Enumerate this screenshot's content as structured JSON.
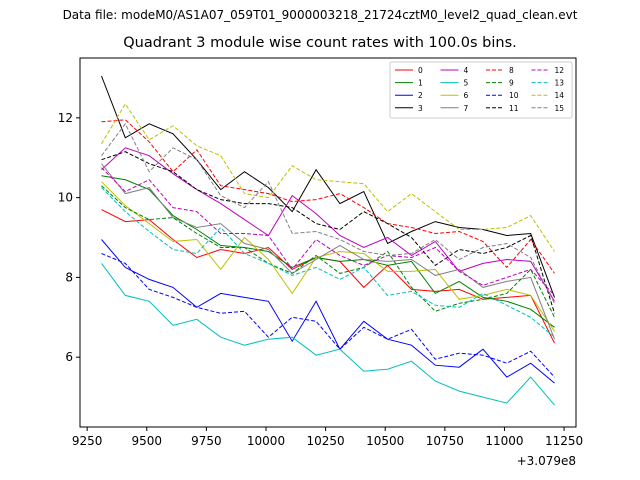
{
  "suptitle": "Data file: modeM0/AS1A07_059T01_9000003218_21724cztM0_level2_quad_clean.evt",
  "chart_data": {
    "type": "line",
    "title": "Quadrant 3 module wise count rates with 100.0s bins.",
    "xlabel": "",
    "ylabel": "",
    "x_offset_label": "+3.079e8",
    "xlim": [
      9220,
      11300
    ],
    "ylim": [
      4.25,
      13.5
    ],
    "xticks": [
      9250,
      9500,
      9750,
      10000,
      10250,
      10500,
      10750,
      11000,
      11250
    ],
    "xtick_labels": [
      "9250",
      "9500",
      "9750",
      "10000",
      "10250",
      "10500",
      "10750",
      "11000",
      "11250"
    ],
    "yticks": [
      6,
      8,
      10,
      12
    ],
    "ytick_labels": [
      "6",
      "8",
      "10",
      "12"
    ],
    "legend_loc": "upper right",
    "x": [
      9310,
      9410,
      9510,
      9610,
      9710,
      9810,
      9910,
      10010,
      10110,
      10210,
      10310,
      10410,
      10510,
      10610,
      10710,
      10810,
      10910,
      11010,
      11110,
      11210
    ],
    "series": [
      {
        "name": "0",
        "color": "#ff0000",
        "dash": "solid",
        "values": [
          9.7,
          9.4,
          9.45,
          8.95,
          8.5,
          8.7,
          8.6,
          8.75,
          8.2,
          8.5,
          8.4,
          7.75,
          8.3,
          7.7,
          7.65,
          7.7,
          7.45,
          7.5,
          7.55,
          6.35
        ]
      },
      {
        "name": "1",
        "color": "#008000",
        "dash": "solid",
        "values": [
          10.55,
          10.45,
          10.2,
          9.55,
          9.2,
          8.8,
          8.75,
          8.65,
          8.25,
          8.5,
          8.4,
          8.45,
          8.3,
          8.4,
          7.6,
          7.9,
          7.5,
          7.4,
          7.2,
          6.75
        ]
      },
      {
        "name": "2",
        "color": "#0000ff",
        "dash": "solid",
        "values": [
          8.95,
          8.25,
          7.95,
          7.75,
          7.25,
          7.6,
          7.5,
          7.4,
          6.4,
          7.4,
          6.2,
          6.9,
          6.45,
          6.3,
          5.8,
          5.75,
          6.2,
          5.5,
          5.85,
          5.35
        ]
      },
      {
        "name": "3",
        "color": "#000000",
        "dash": "solid",
        "values": [
          13.05,
          11.5,
          11.85,
          11.6,
          10.95,
          10.2,
          10.65,
          10.25,
          9.65,
          10.7,
          9.85,
          10.15,
          8.85,
          9.15,
          9.4,
          9.25,
          9.2,
          9.05,
          9.1,
          7.5
        ]
      },
      {
        "name": "4",
        "color": "#bf00bf",
        "dash": "solid",
        "values": [
          10.7,
          11.25,
          11.05,
          10.6,
          10.2,
          9.85,
          9.45,
          9.05,
          10.05,
          9.6,
          9.05,
          8.75,
          9.0,
          8.55,
          8.9,
          8.15,
          8.35,
          8.45,
          8.4,
          7.4
        ]
      },
      {
        "name": "5",
        "color": "#00bfbf",
        "dash": "solid",
        "values": [
          8.35,
          7.55,
          7.4,
          6.8,
          6.95,
          6.5,
          6.3,
          6.45,
          6.5,
          6.05,
          6.2,
          5.65,
          5.7,
          5.9,
          5.4,
          5.15,
          5.0,
          4.85,
          5.5,
          4.8
        ]
      },
      {
        "name": "6",
        "color": "#bfbf00",
        "dash": "solid",
        "values": [
          10.4,
          9.8,
          9.35,
          8.9,
          8.95,
          8.2,
          9.0,
          8.45,
          7.6,
          8.5,
          8.65,
          8.6,
          8.15,
          8.15,
          8.2,
          7.45,
          7.55,
          7.7,
          7.55,
          6.65
        ]
      },
      {
        "name": "7",
        "color": "#808080",
        "dash": "solid",
        "values": [
          10.85,
          10.1,
          10.25,
          9.5,
          9.25,
          9.35,
          8.85,
          8.7,
          8.1,
          8.45,
          8.8,
          8.45,
          8.4,
          8.45,
          8.05,
          8.2,
          7.75,
          7.9,
          8.0,
          6.45
        ]
      },
      {
        "name": "8",
        "color": "#ff0000",
        "dash": "dashed",
        "values": [
          11.9,
          11.95,
          11.4,
          10.65,
          11.2,
          10.3,
          10.2,
          10.1,
          9.9,
          9.95,
          10.1,
          9.75,
          9.35,
          9.25,
          9.1,
          9.15,
          8.9,
          8.25,
          8.95,
          8.1
        ]
      },
      {
        "name": "9",
        "color": "#008000",
        "dash": "dashed",
        "values": [
          10.3,
          9.75,
          9.45,
          9.5,
          9.1,
          8.75,
          8.75,
          8.35,
          8.1,
          8.55,
          8.1,
          8.25,
          8.65,
          7.75,
          7.15,
          7.35,
          7.45,
          7.6,
          8.2,
          7.0
        ]
      },
      {
        "name": "10",
        "color": "#0000ff",
        "dash": "dashed",
        "values": [
          8.6,
          8.35,
          7.7,
          7.5,
          7.25,
          7.1,
          7.15,
          6.5,
          7.0,
          6.9,
          6.2,
          6.75,
          6.45,
          6.7,
          5.95,
          6.1,
          6.05,
          5.85,
          6.15,
          5.5
        ]
      },
      {
        "name": "11",
        "color": "#000000",
        "dash": "dashed",
        "values": [
          10.95,
          11.15,
          10.85,
          10.65,
          10.2,
          9.95,
          9.85,
          9.85,
          9.75,
          9.35,
          9.2,
          9.65,
          9.35,
          9.0,
          8.3,
          8.7,
          8.6,
          8.75,
          9.05,
          7.1
        ]
      },
      {
        "name": "12",
        "color": "#bf00bf",
        "dash": "dashed",
        "values": [
          10.75,
          10.15,
          10.45,
          9.75,
          9.65,
          9.1,
          9.1,
          9.05,
          8.2,
          8.95,
          8.55,
          8.3,
          8.55,
          8.5,
          8.75,
          8.15,
          7.8,
          8.0,
          8.2,
          7.55
        ]
      },
      {
        "name": "13",
        "color": "#00bfbf",
        "dash": "dashed",
        "values": [
          10.25,
          9.65,
          9.15,
          8.7,
          8.6,
          9.25,
          8.6,
          8.35,
          8.05,
          8.25,
          7.95,
          8.25,
          7.55,
          7.65,
          7.3,
          7.25,
          7.6,
          7.3,
          7.0,
          6.5
        ]
      },
      {
        "name": "14",
        "color": "#bfbf00",
        "dash": "dashed",
        "values": [
          11.35,
          12.35,
          11.45,
          11.8,
          11.3,
          11.05,
          10.1,
          10.0,
          10.8,
          10.45,
          10.4,
          10.35,
          9.65,
          10.1,
          9.65,
          9.2,
          9.2,
          9.25,
          9.55,
          8.65
        ]
      },
      {
        "name": "15",
        "color": "#808080",
        "dash": "dashed",
        "values": [
          11.05,
          11.85,
          10.65,
          11.25,
          10.95,
          10.05,
          9.75,
          10.4,
          9.1,
          9.15,
          8.95,
          8.65,
          8.55,
          8.6,
          8.95,
          8.45,
          8.75,
          8.85,
          8.5,
          7.35
        ]
      }
    ]
  }
}
